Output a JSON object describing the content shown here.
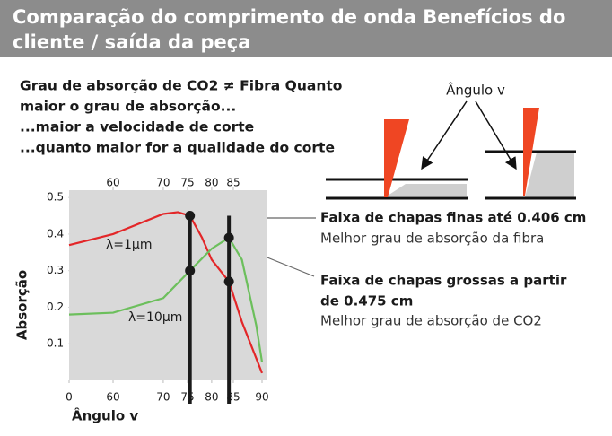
{
  "header": {
    "title_lines": [
      "Comparação do comprimento de onda Benefícios do",
      "cliente / saída da peça"
    ]
  },
  "intro": [
    "Grau de absorção de CO2 ≠ Fibra Quanto",
    "maior o grau de absorção...",
    "...maior a velocidade de corte",
    "...quanto maior for a qualidade do corte"
  ],
  "diagram": {
    "label": "Ângulo v"
  },
  "annotations": [
    {
      "title_lines": [
        "Faixa de chapas finas até 0.406 cm"
      ],
      "text": "Melhor grau de absorção da fibra"
    },
    {
      "title_lines": [
        "Faixa de chapas grossas a partir",
        "de 0.475 cm"
      ],
      "text": "Melhor grau de absorção de CO2"
    }
  ],
  "chart_data": {
    "type": "line",
    "xlabel": "Ângulo v",
    "ylabel": "Absorção",
    "xlim": [
      0,
      90
    ],
    "ylim": [
      0,
      0.52
    ],
    "xticks": [
      0,
      60,
      70,
      75,
      80,
      85,
      90
    ],
    "x2ticks": [
      60,
      70,
      75,
      80,
      85
    ],
    "yticks": [
      0.1,
      0.2,
      0.3,
      0.4,
      0.5
    ],
    "vlines": [
      75.5,
      84
    ],
    "series": [
      {
        "name": "λ=1μm",
        "color": "#e32628",
        "x": [
          0,
          60,
          70,
          73,
          75.5,
          78,
          80,
          84,
          86.5,
          90
        ],
        "values": [
          0.37,
          0.4,
          0.455,
          0.46,
          0.45,
          0.39,
          0.33,
          0.27,
          0.16,
          0.02
        ]
      },
      {
        "name": "λ=10μm",
        "color": "#6cbf5c",
        "x": [
          0,
          60,
          70,
          75.5,
          80,
          84,
          86.5,
          89,
          90
        ],
        "values": [
          0.18,
          0.185,
          0.225,
          0.3,
          0.36,
          0.39,
          0.33,
          0.15,
          0.05
        ]
      }
    ]
  }
}
